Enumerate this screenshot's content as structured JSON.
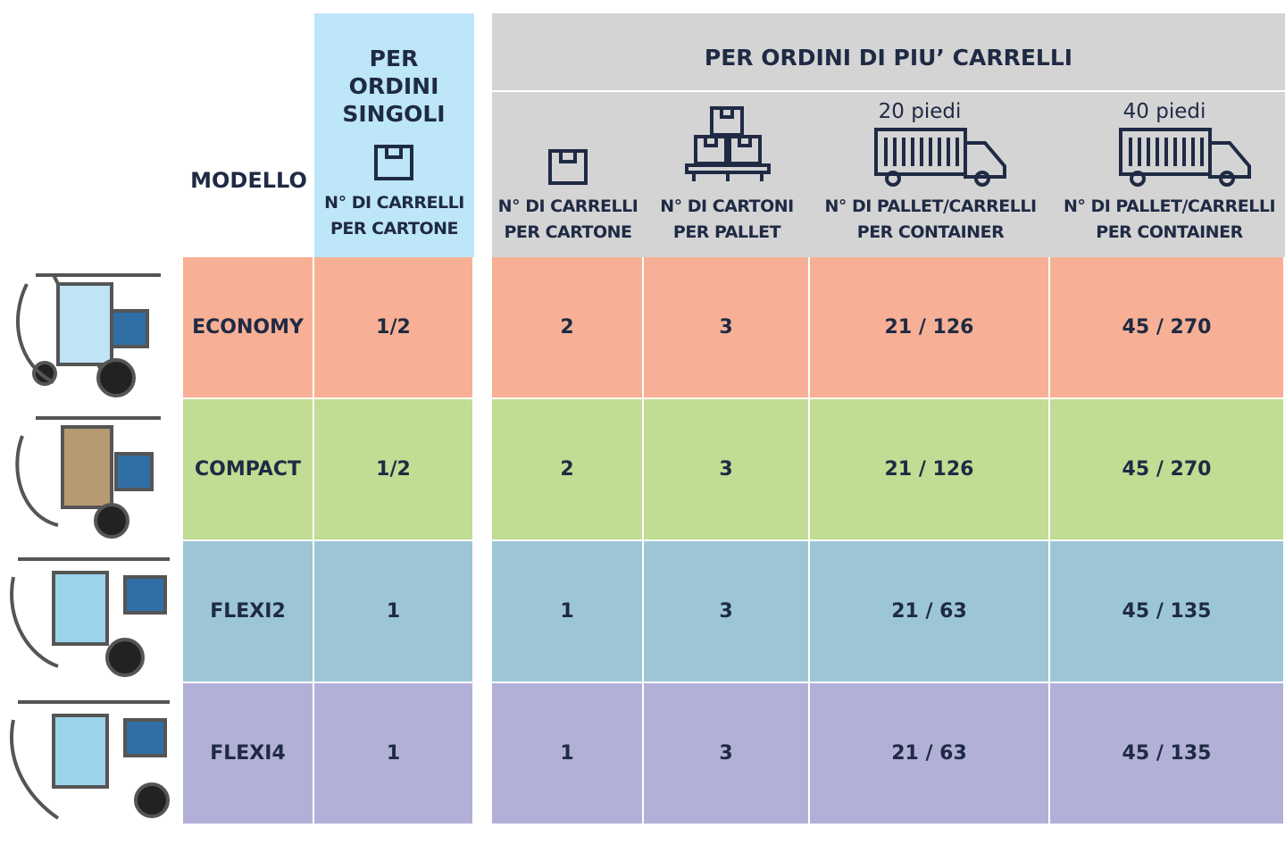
{
  "header": {
    "model": "MODELLO",
    "single": {
      "title": "PER ORDINI SINGOLI",
      "label": "N° DI CARRELLI PER CARTONE"
    },
    "multi": {
      "title": "PER ORDINI DI PIU’ CARRELLI",
      "columns": [
        {
          "label": "N° DI CARRELLI PER CARTONE"
        },
        {
          "label": "N° DI CARTONI PER PALLET"
        },
        {
          "caption": "20 piedi",
          "label": "N° DI PALLET/CARRELLI PER CONTAINER"
        },
        {
          "caption": "40 piedi",
          "label": "N° DI PALLET/CARRELLI PER CONTAINER"
        }
      ]
    }
  },
  "table": {
    "rows": [
      {
        "model": "ECONOMY",
        "color": "#f7b096",
        "cells": [
          "1/2",
          "2",
          "3",
          "21 / 126",
          "45 / 270"
        ]
      },
      {
        "model": "COMPACT",
        "color": "#c1dc93",
        "cells": [
          "1/2",
          "2",
          "3",
          "21 / 126",
          "45 / 270"
        ]
      },
      {
        "model": "FLEXI2",
        "color": "#9cc6d6",
        "cells": [
          "1",
          "1",
          "3",
          "21 / 63",
          "45 / 135"
        ]
      },
      {
        "model": "FLEXI4",
        "color": "#b3b0d8",
        "cells": [
          "1",
          "1",
          "3",
          "21 / 63",
          "45 / 135"
        ]
      }
    ]
  }
}
